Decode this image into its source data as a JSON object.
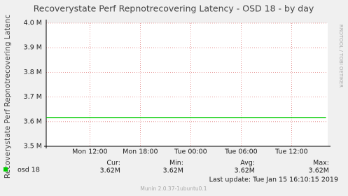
{
  "chart_data": {
    "type": "line",
    "title": "Recoverystate Perf Repnotrecovering Latency - OSD 18 - by day",
    "y_label": "Recoverystate Perf Repnotrecovering Latenc",
    "side_label": "RRDTOOL / TOBI OETIKER",
    "xlim": [
      0,
      33.5
    ],
    "xticks": [
      {
        "value": 5.2,
        "label": "Mon 12:00"
      },
      {
        "value": 11.2,
        "label": "Mon 18:00"
      },
      {
        "value": 17.2,
        "label": "Tue 00:00"
      },
      {
        "value": 23.2,
        "label": "Tue 06:00"
      },
      {
        "value": 29.2,
        "label": "Tue 12:00"
      }
    ],
    "ylim": [
      3500000,
      4000000
    ],
    "yticks": [
      {
        "value": 3500000,
        "label": "3.5 M"
      },
      {
        "value": 3600000,
        "label": "3.6 M"
      },
      {
        "value": 3700000,
        "label": "3.7 M"
      },
      {
        "value": 3800000,
        "label": "3.8 M"
      },
      {
        "value": 3900000,
        "label": "3.9 M"
      },
      {
        "value": 4000000,
        "label": "4.0 M"
      }
    ],
    "grid": true,
    "x": [
      0,
      33.3
    ],
    "series": [
      {
        "name": "osd 18",
        "color": "#00cc00",
        "values": [
          3617000,
          3617000
        ]
      }
    ],
    "stats": [
      {
        "label": "Cur:",
        "value": 3617000,
        "value_label": "3.62M"
      },
      {
        "label": "Min:",
        "value": 3617000,
        "value_label": "3.62M"
      },
      {
        "label": "Avg:",
        "value": 3617000,
        "value_label": "3.62M"
      },
      {
        "label": "Max:",
        "value": 3617000,
        "value_label": "3.62M"
      }
    ],
    "last_update": "Last update: Tue Jan 15 16:10:15 2019",
    "footer": "Munin 2.0.37-1ubuntu0.1"
  }
}
